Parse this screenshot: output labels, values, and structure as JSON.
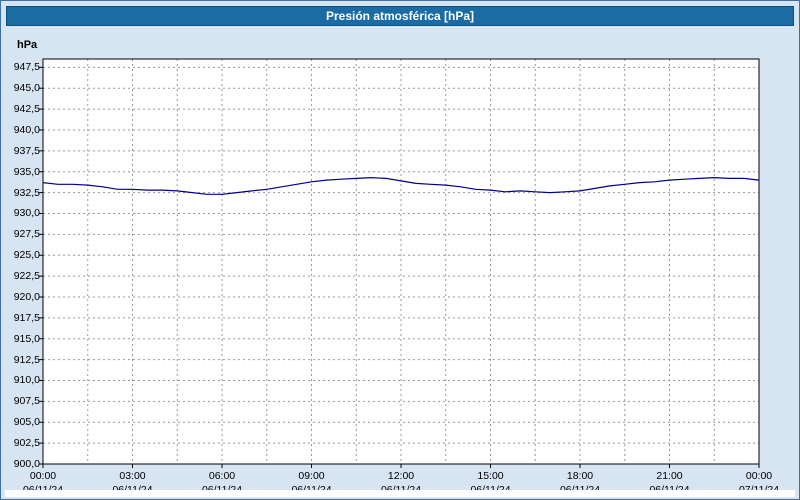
{
  "title": "Presión atmosférica [hPa]",
  "colors": {
    "title_bg": "#1b6ba5",
    "title_text": "#ffffff",
    "frame_bg": "#d7e4f2",
    "frame_border": "#3f6fa5",
    "plot_bg": "#ffffff",
    "plot_border": "#000000",
    "grid": "#999999",
    "line": "#00008b"
  },
  "chart_data": {
    "type": "line",
    "title": "Presión atmosférica [hPa]",
    "xlabel": "",
    "ylabel": "hPa",
    "ylim": [
      900.0,
      948.5
    ],
    "y_tick_step": 2.5,
    "y_tick_values": [
      947.5,
      945.0,
      942.5,
      940.0,
      937.5,
      935.0,
      932.5,
      930.0,
      927.5,
      925.0,
      922.5,
      920.0,
      917.5,
      915.0,
      912.5,
      910.0,
      907.5,
      905.0,
      902.5,
      900.0
    ],
    "y_tick_labels": [
      "947,5",
      "945,0",
      "942,5",
      "940,0",
      "937,5",
      "935,0",
      "932,5",
      "930,0",
      "927,5",
      "925,0",
      "922,5",
      "920,0",
      "917,5",
      "915,0",
      "912,5",
      "910,0",
      "907,5",
      "905,0",
      "902,5",
      "900,0"
    ],
    "x_hours_range": [
      0,
      24
    ],
    "x_minor_grid_step_hours": 1.5,
    "x_ticks": [
      {
        "hour": 0,
        "time": "00:00",
        "date": "06/11/24"
      },
      {
        "hour": 3,
        "time": "03:00",
        "date": "06/11/24"
      },
      {
        "hour": 6,
        "time": "06:00",
        "date": "06/11/24"
      },
      {
        "hour": 9,
        "time": "09:00",
        "date": "06/11/24"
      },
      {
        "hour": 12,
        "time": "12:00",
        "date": "06/11/24"
      },
      {
        "hour": 15,
        "time": "15:00",
        "date": "06/11/24"
      },
      {
        "hour": 18,
        "time": "18:00",
        "date": "06/11/24"
      },
      {
        "hour": 21,
        "time": "21:00",
        "date": "06/11/24"
      },
      {
        "hour": 24,
        "time": "00:00",
        "date": "07/11/24"
      }
    ],
    "grid": "dashed",
    "legend": "none",
    "series": [
      {
        "name": "Presión atmosférica",
        "x_start_hour": 0,
        "x_step_hours": 0.5,
        "values": [
          933.7,
          933.5,
          933.5,
          933.4,
          933.2,
          932.9,
          932.9,
          932.8,
          932.8,
          932.7,
          932.5,
          932.3,
          932.3,
          932.5,
          932.7,
          932.9,
          933.2,
          933.5,
          933.8,
          934.0,
          934.1,
          934.2,
          934.3,
          934.2,
          933.9,
          933.6,
          933.5,
          933.4,
          933.2,
          932.9,
          932.8,
          932.6,
          932.7,
          932.6,
          932.5,
          932.6,
          932.7,
          933.0,
          933.3,
          933.5,
          933.7,
          933.8,
          934.0,
          934.1,
          934.2,
          934.3,
          934.2,
          934.2,
          934.0
        ]
      }
    ]
  }
}
